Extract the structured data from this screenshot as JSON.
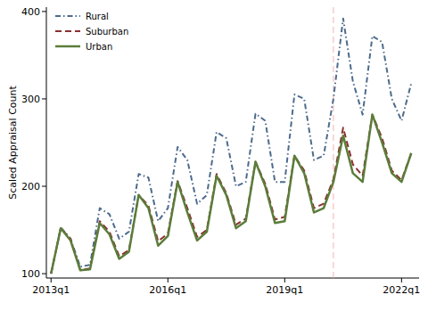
{
  "chart_data": {
    "type": "line",
    "y_label": "Scaled Appraisal Count",
    "x": [
      2013,
      2013.25,
      2013.5,
      2013.75,
      2014,
      2014.25,
      2014.5,
      2014.75,
      2015,
      2015.25,
      2015.5,
      2015.75,
      2016,
      2016.25,
      2016.5,
      2016.75,
      2017,
      2017.25,
      2017.5,
      2017.75,
      2018,
      2018.25,
      2018.5,
      2018.75,
      2019,
      2019.25,
      2019.5,
      2019.75,
      2020,
      2020.25,
      2020.5,
      2020.75,
      2021,
      2021.25,
      2021.5,
      2021.75,
      2022,
      2022.25
    ],
    "series": [
      {
        "name": "Rural",
        "color": "#4d6b8c",
        "line_style": "dashdot",
        "values": [
          100,
          153,
          140,
          108,
          110,
          175,
          168,
          140,
          148,
          214,
          210,
          160,
          175,
          245,
          230,
          180,
          190,
          262,
          255,
          200,
          205,
          283,
          275,
          205,
          205,
          305,
          300,
          230,
          235,
          300,
          392,
          320,
          282,
          372,
          365,
          300,
          275,
          318
        ]
      },
      {
        "name": "Suburban",
        "color": "#8b2f2f",
        "line_style": "dashed",
        "values": [
          100,
          152,
          140,
          104,
          106,
          160,
          148,
          120,
          127,
          190,
          178,
          137,
          146,
          206,
          175,
          142,
          150,
          214,
          192,
          156,
          163,
          228,
          203,
          162,
          165,
          235,
          218,
          175,
          180,
          208,
          267,
          225,
          212,
          282,
          255,
          218,
          207,
          238
        ]
      },
      {
        "name": "Urban",
        "color": "#5b7d3a",
        "line_style": "solid",
        "values": [
          100,
          152,
          138,
          104,
          105,
          158,
          145,
          117,
          125,
          190,
          175,
          132,
          143,
          205,
          170,
          138,
          148,
          212,
          190,
          152,
          160,
          228,
          200,
          158,
          160,
          235,
          215,
          170,
          175,
          205,
          258,
          215,
          205,
          282,
          250,
          215,
          205,
          238
        ]
      }
    ],
    "xlim": [
      2012.88,
      2022.45
    ],
    "ylim": [
      95,
      405
    ],
    "xticks": [
      {
        "value": 2013,
        "label": "2013q1"
      },
      {
        "value": 2016,
        "label": "2016q1"
      },
      {
        "value": 2019,
        "label": "2019q1"
      },
      {
        "value": 2022,
        "label": "2022q1"
      }
    ],
    "yticks": [
      100,
      200,
      300,
      400
    ],
    "legend": "top-left",
    "grid": false,
    "annotations": [
      {
        "type": "vline",
        "x": 2020.25,
        "color": "#f2b3b3",
        "line_style": "dashed"
      }
    ]
  }
}
